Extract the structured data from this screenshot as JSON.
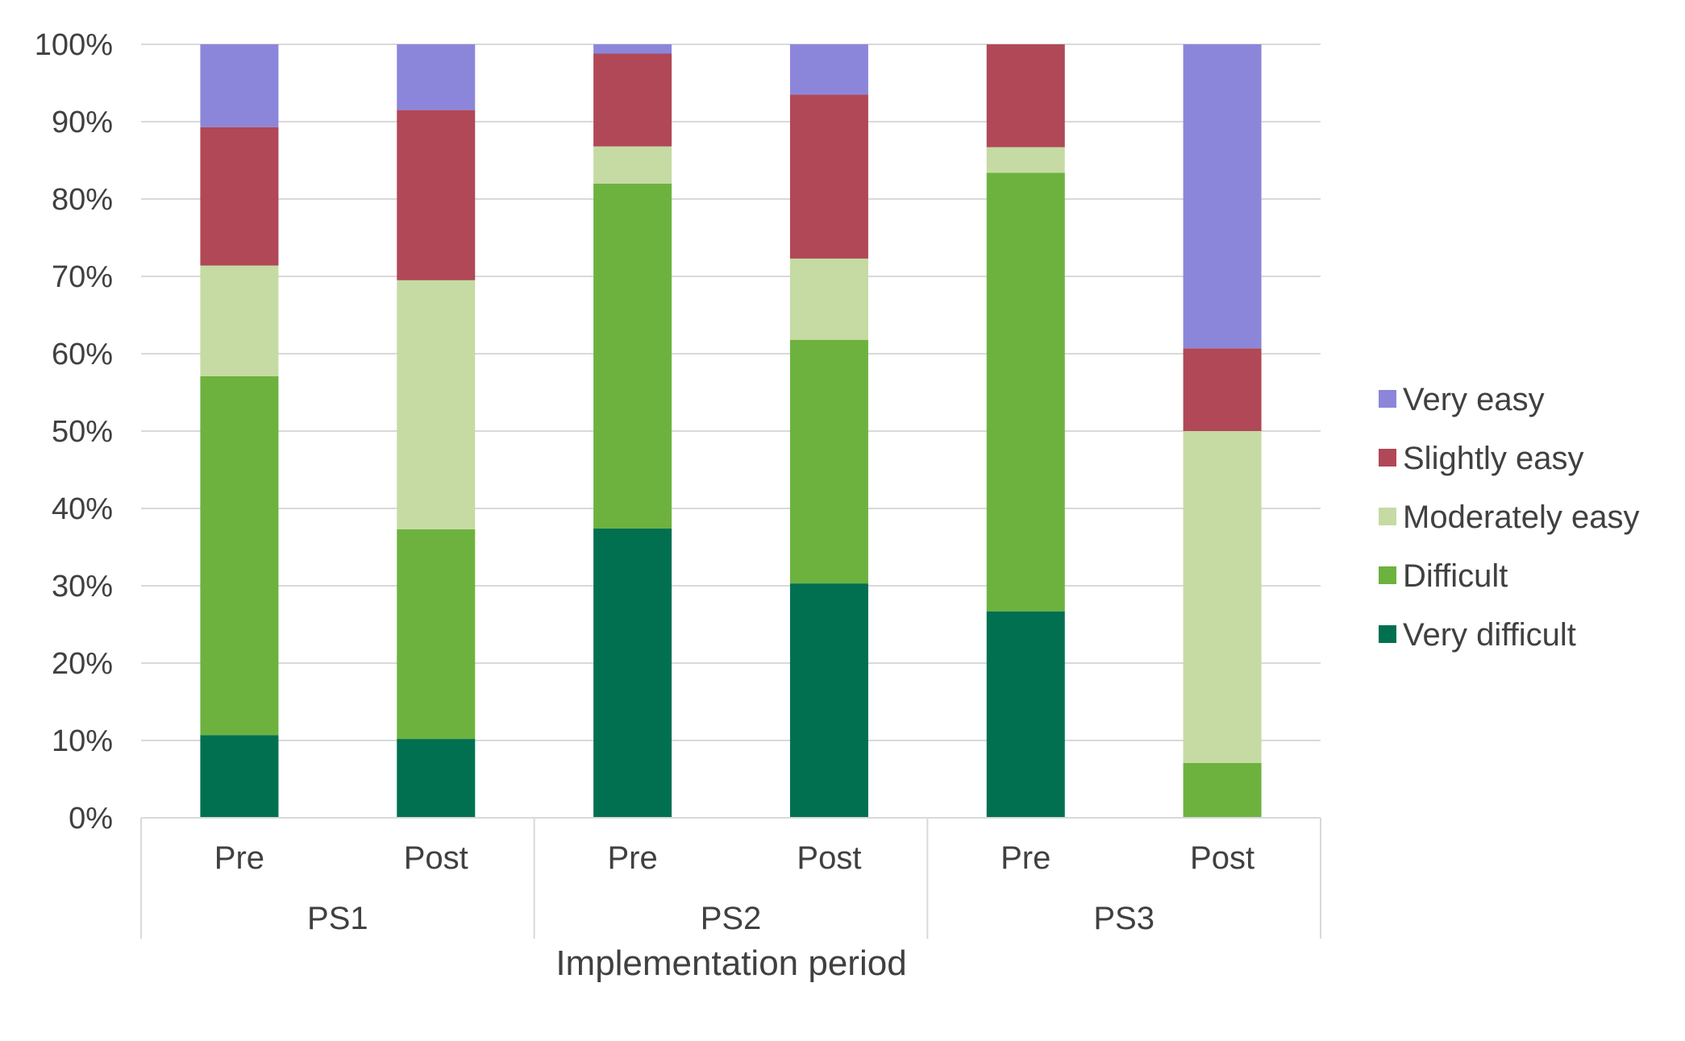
{
  "chart_data": {
    "type": "bar",
    "stacked": true,
    "percent_stacked": true,
    "title": "",
    "xlabel": "Implementation period",
    "ylabel": "",
    "ylim": [
      0,
      100
    ],
    "y_ticks": [
      "0%",
      "10%",
      "20%",
      "30%",
      "40%",
      "50%",
      "60%",
      "70%",
      "80%",
      "90%",
      "100%"
    ],
    "grid": true,
    "legend_position": "right",
    "groups": [
      {
        "label": "PS1",
        "categories": [
          "Pre",
          "Post"
        ]
      },
      {
        "label": "PS2",
        "categories": [
          "Pre",
          "Post"
        ]
      },
      {
        "label": "PS3",
        "categories": [
          "Pre",
          "Post"
        ]
      }
    ],
    "categories": [
      "Pre",
      "Post",
      "Pre",
      "Post",
      "Pre",
      "Post"
    ],
    "series": [
      {
        "name": "Very difficult",
        "color": "#007050",
        "values": [
          10.7,
          10.2,
          37.4,
          30.3,
          26.7,
          0
        ]
      },
      {
        "name": "Difficult",
        "color": "#6db23e",
        "values": [
          46.4,
          27.1,
          44.6,
          31.5,
          56.7,
          7.1
        ]
      },
      {
        "name": "Moderately easy",
        "color": "#c5dba3",
        "values": [
          14.3,
          32.2,
          4.8,
          10.5,
          3.3,
          42.9
        ]
      },
      {
        "name": "Slightly easy",
        "color": "#b04857",
        "values": [
          17.9,
          22.0,
          12.0,
          21.2,
          13.3,
          10.7
        ]
      },
      {
        "name": "Very easy",
        "color": "#8c86da",
        "values": [
          10.7,
          8.5,
          1.2,
          6.5,
          0,
          39.3
        ]
      }
    ],
    "legend_order": [
      "Very easy",
      "Slightly easy",
      "Moderately easy",
      "Difficult",
      "Very difficult"
    ]
  }
}
